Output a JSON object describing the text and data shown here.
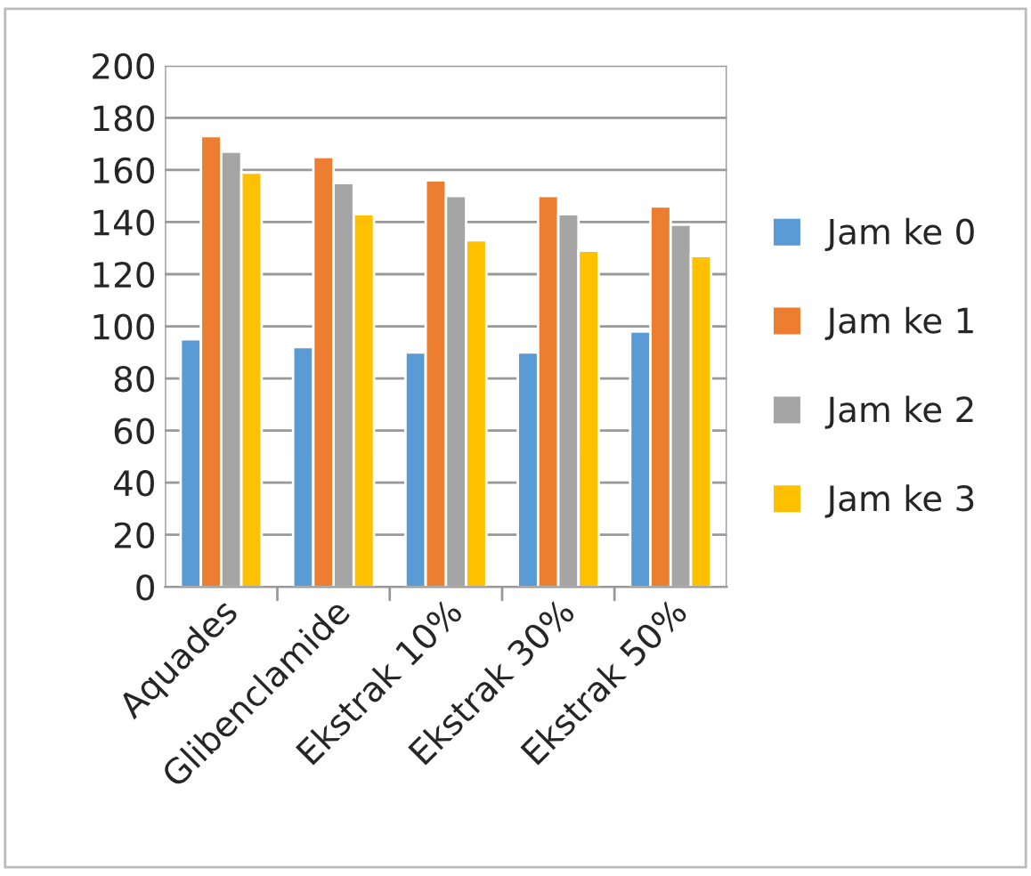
{
  "chart_data": {
    "type": "bar",
    "categories": [
      "Aquades",
      "Glibenclamide",
      "Ekstrak 10%",
      "Ekstrak 30%",
      "Ekstrak 50%"
    ],
    "series": [
      {
        "name": "Jam ke 0",
        "color": "#5b9bd5",
        "values": [
          95,
          92,
          90,
          90,
          98
        ]
      },
      {
        "name": "Jam ke 1",
        "color": "#ed7d31",
        "values": [
          173,
          165,
          156,
          150,
          146
        ]
      },
      {
        "name": "Jam ke 2",
        "color": "#a5a5a5",
        "values": [
          167,
          155,
          150,
          143,
          139
        ]
      },
      {
        "name": "Jam ke 3",
        "color": "#ffc000",
        "values": [
          159,
          143,
          133,
          129,
          127
        ]
      }
    ],
    "ylim": [
      0,
      200
    ],
    "yticks": [
      0,
      20,
      40,
      60,
      80,
      100,
      120,
      140,
      160,
      180,
      200
    ],
    "grid": "y",
    "legend": "right"
  }
}
